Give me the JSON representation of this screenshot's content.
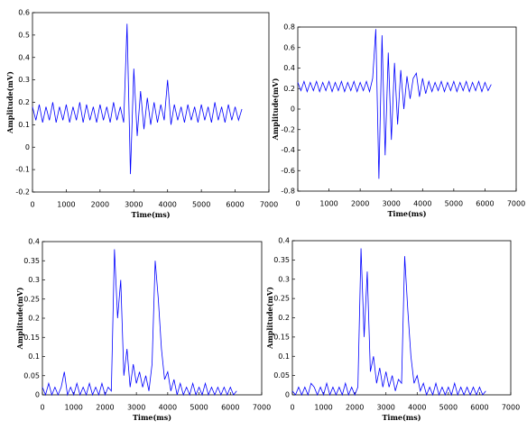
{
  "chart_data": [
    {
      "type": "line",
      "xlabel": "Time(ms)",
      "ylabel": "Amplitude(mV)",
      "color": "#0000ff",
      "x": [
        0,
        100,
        200,
        300,
        400,
        500,
        600,
        700,
        800,
        900,
        1000,
        1100,
        1200,
        1300,
        1400,
        1500,
        1600,
        1700,
        1800,
        1900,
        2000,
        2100,
        2200,
        2300,
        2400,
        2500,
        2600,
        2700,
        2800,
        2900,
        3000,
        3100,
        3200,
        3300,
        3400,
        3500,
        3600,
        3700,
        3800,
        3900,
        4000,
        4100,
        4200,
        4300,
        4400,
        4500,
        4600,
        4700,
        4800,
        4900,
        5000,
        5100,
        5200,
        5300,
        5400,
        5500,
        5600,
        5700,
        5800,
        5900,
        6000,
        6100,
        6200
      ],
      "values": [
        0.18,
        0.12,
        0.19,
        0.11,
        0.18,
        0.12,
        0.2,
        0.11,
        0.18,
        0.12,
        0.19,
        0.11,
        0.18,
        0.12,
        0.2,
        0.11,
        0.19,
        0.12,
        0.18,
        0.11,
        0.19,
        0.12,
        0.18,
        0.11,
        0.2,
        0.12,
        0.18,
        0.11,
        0.55,
        -0.12,
        0.35,
        0.05,
        0.25,
        0.08,
        0.22,
        0.1,
        0.2,
        0.11,
        0.19,
        0.12,
        0.3,
        0.1,
        0.19,
        0.12,
        0.18,
        0.11,
        0.19,
        0.12,
        0.18,
        0.11,
        0.19,
        0.12,
        0.18,
        0.11,
        0.2,
        0.12,
        0.18,
        0.11,
        0.19,
        0.12,
        0.18,
        0.12,
        0.17
      ],
      "xlim": [
        0,
        7000
      ],
      "ylim": [
        -0.2,
        0.6
      ],
      "xticks": [
        0,
        1000,
        2000,
        3000,
        4000,
        5000,
        6000,
        7000
      ],
      "yticks": [
        -0.2,
        -0.1,
        0,
        0.1,
        0.2,
        0.3,
        0.4,
        0.5,
        0.6
      ]
    },
    {
      "type": "line",
      "xlabel": "Time(ms)",
      "ylabel": "Amplitude(mV)",
      "color": "#0000ff",
      "x": [
        0,
        100,
        200,
        300,
        400,
        500,
        600,
        700,
        800,
        900,
        1000,
        1100,
        1200,
        1300,
        1400,
        1500,
        1600,
        1700,
        1800,
        1900,
        2000,
        2100,
        2200,
        2300,
        2400,
        2500,
        2600,
        2700,
        2800,
        2900,
        3000,
        3100,
        3200,
        3300,
        3400,
        3500,
        3600,
        3700,
        3800,
        3900,
        4000,
        4100,
        4200,
        4300,
        4400,
        4500,
        4600,
        4700,
        4800,
        4900,
        5000,
        5100,
        5200,
        5300,
        5400,
        5500,
        5600,
        5700,
        5800,
        5900,
        6000,
        6100,
        6200
      ],
      "values": [
        0.26,
        0.18,
        0.27,
        0.17,
        0.26,
        0.18,
        0.27,
        0.17,
        0.26,
        0.18,
        0.27,
        0.17,
        0.26,
        0.18,
        0.27,
        0.17,
        0.26,
        0.18,
        0.27,
        0.17,
        0.26,
        0.18,
        0.27,
        0.17,
        0.3,
        0.78,
        -0.68,
        0.72,
        -0.45,
        0.55,
        -0.3,
        0.45,
        -0.15,
        0.38,
        0,
        0.32,
        0.1,
        0.3,
        0.35,
        0.12,
        0.3,
        0.15,
        0.27,
        0.17,
        0.26,
        0.18,
        0.27,
        0.17,
        0.26,
        0.18,
        0.27,
        0.17,
        0.26,
        0.18,
        0.27,
        0.17,
        0.26,
        0.18,
        0.27,
        0.17,
        0.26,
        0.18,
        0.24
      ],
      "xlim": [
        0,
        7000
      ],
      "ylim": [
        -0.8,
        0.8
      ],
      "xticks": [
        0,
        1000,
        2000,
        3000,
        4000,
        5000,
        6000,
        7000
      ],
      "yticks": [
        -0.8,
        -0.6,
        -0.4,
        -0.2,
        0,
        0.2,
        0.4,
        0.6,
        0.8
      ]
    },
    {
      "type": "line",
      "xlabel": "Time(ms)",
      "ylabel": "Amplitude(mV)",
      "color": "#0000ff",
      "x": [
        0,
        100,
        200,
        300,
        400,
        500,
        600,
        700,
        800,
        900,
        1000,
        1100,
        1200,
        1300,
        1400,
        1500,
        1600,
        1700,
        1800,
        1900,
        2000,
        2100,
        2200,
        2300,
        2400,
        2500,
        2600,
        2700,
        2800,
        2900,
        3000,
        3100,
        3200,
        3300,
        3400,
        3500,
        3600,
        3700,
        3800,
        3900,
        4000,
        4100,
        4200,
        4300,
        4400,
        4500,
        4600,
        4700,
        4800,
        4900,
        5000,
        5100,
        5200,
        5300,
        5400,
        5500,
        5600,
        5700,
        5800,
        5900,
        6000,
        6100,
        6200
      ],
      "values": [
        0.02,
        0,
        0.03,
        0,
        0.02,
        0,
        0.02,
        0.06,
        0,
        0.02,
        0,
        0.03,
        0,
        0.02,
        0,
        0.03,
        0,
        0.02,
        0,
        0.03,
        0,
        0.02,
        0.01,
        0.38,
        0.2,
        0.3,
        0.05,
        0.12,
        0.02,
        0.08,
        0.03,
        0.06,
        0.02,
        0.05,
        0.01,
        0.08,
        0.35,
        0.25,
        0.12,
        0.04,
        0.06,
        0.01,
        0.04,
        0,
        0.03,
        0,
        0.02,
        0,
        0.03,
        0,
        0.02,
        0,
        0.03,
        0,
        0.02,
        0,
        0.02,
        0,
        0.02,
        0,
        0.02,
        0,
        0.01
      ],
      "xlim": [
        0,
        7000
      ],
      "ylim": [
        0,
        0.4
      ],
      "xticks": [
        0,
        1000,
        2000,
        3000,
        4000,
        5000,
        6000,
        7000
      ],
      "yticks": [
        0,
        0.05,
        0.1,
        0.15,
        0.2,
        0.25,
        0.3,
        0.35,
        0.4
      ]
    },
    {
      "type": "line",
      "xlabel": "Time(ms)",
      "ylabel": "Amplitude(mV)",
      "color": "#0000ff",
      "x": [
        0,
        100,
        200,
        300,
        400,
        500,
        600,
        700,
        800,
        900,
        1000,
        1100,
        1200,
        1300,
        1400,
        1500,
        1600,
        1700,
        1800,
        1900,
        2000,
        2100,
        2200,
        2300,
        2400,
        2500,
        2600,
        2700,
        2800,
        2900,
        3000,
        3100,
        3200,
        3300,
        3400,
        3500,
        3600,
        3700,
        3800,
        3900,
        4000,
        4100,
        4200,
        4300,
        4400,
        4500,
        4600,
        4700,
        4800,
        4900,
        5000,
        5100,
        5200,
        5300,
        5400,
        5500,
        5600,
        5700,
        5800,
        5900,
        6000,
        6100,
        6200
      ],
      "values": [
        0.01,
        0,
        0.02,
        0,
        0.02,
        0,
        0.03,
        0.02,
        0,
        0.02,
        0,
        0.03,
        0,
        0.02,
        0,
        0.02,
        0,
        0.03,
        0,
        0.02,
        0,
        0.02,
        0.38,
        0.15,
        0.32,
        0.06,
        0.1,
        0.03,
        0.07,
        0.02,
        0.06,
        0.02,
        0.05,
        0.01,
        0.04,
        0.03,
        0.36,
        0.22,
        0.1,
        0.03,
        0.05,
        0.01,
        0.03,
        0,
        0.02,
        0,
        0.03,
        0,
        0.02,
        0,
        0.02,
        0,
        0.03,
        0,
        0.02,
        0,
        0.02,
        0,
        0.02,
        0,
        0.02,
        0,
        0.01
      ],
      "xlim": [
        0,
        7000
      ],
      "ylim": [
        0,
        0.4
      ],
      "xticks": [
        0,
        1000,
        2000,
        3000,
        4000,
        5000,
        6000,
        7000
      ],
      "yticks": [
        0,
        0.05,
        0.1,
        0.15,
        0.2,
        0.25,
        0.3,
        0.35,
        0.4
      ]
    }
  ]
}
